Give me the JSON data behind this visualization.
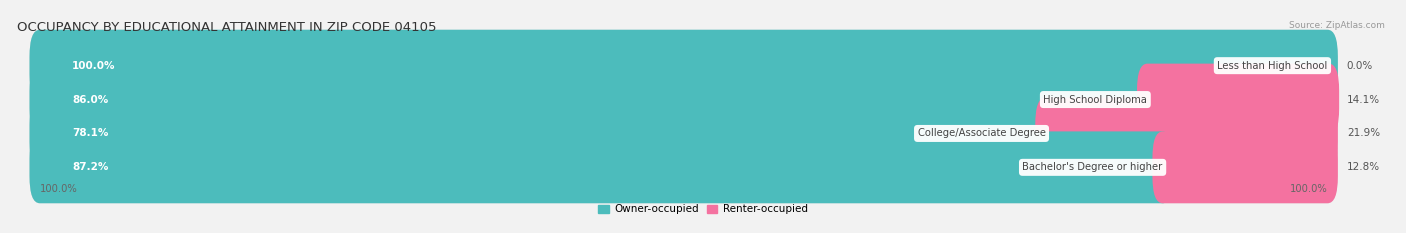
{
  "title": "OCCUPANCY BY EDUCATIONAL ATTAINMENT IN ZIP CODE 04105",
  "source": "Source: ZipAtlas.com",
  "categories": [
    "Less than High School",
    "High School Diploma",
    "College/Associate Degree",
    "Bachelor's Degree or higher"
  ],
  "owner_pct": [
    100.0,
    86.0,
    78.1,
    87.2
  ],
  "renter_pct": [
    0.0,
    14.1,
    21.9,
    12.8
  ],
  "owner_color": "#4CBCBC",
  "renter_color": "#F472A0",
  "bg_color": "#f2f2f2",
  "bar_bg_color": "#e0e0e0",
  "title_fontsize": 9.5,
  "bar_label_fontsize": 7.5,
  "cat_label_fontsize": 7.2,
  "renter_label_fontsize": 7.5,
  "axis_label_fontsize": 7.2,
  "left_label": "100.0%",
  "right_label": "100.0%"
}
